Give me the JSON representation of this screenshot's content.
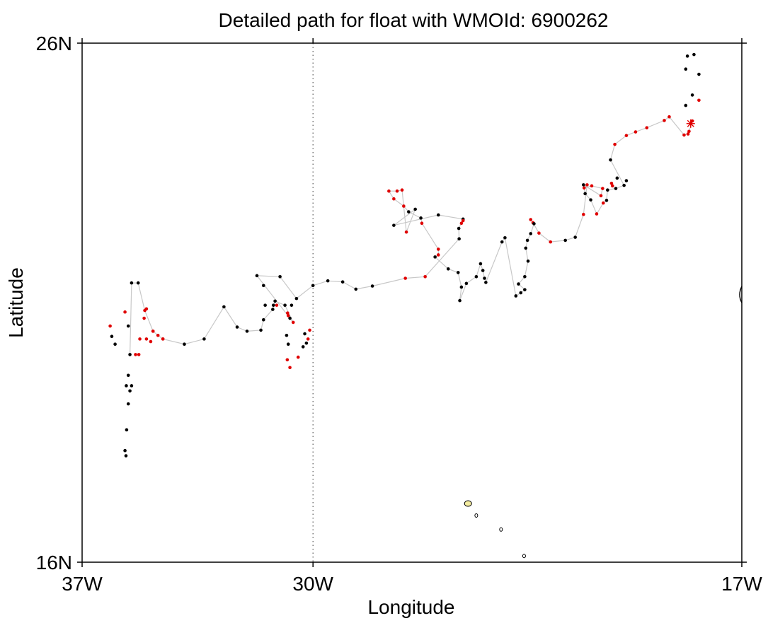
{
  "chart_data": {
    "type": "scatter",
    "title": "Detailed path for float with WMOId: 6900262",
    "xlabel": "Longitude",
    "ylabel": "Latitude",
    "xlim": [
      -37,
      -17
    ],
    "ylim": [
      16,
      26
    ],
    "x_ticks": [
      {
        "value": -37,
        "label": "37W"
      },
      {
        "value": -30,
        "label": "30W"
      },
      {
        "value": -17,
        "label": "17W"
      }
    ],
    "y_ticks": [
      {
        "value": 16,
        "label": "16N"
      },
      {
        "value": 26,
        "label": "26N"
      }
    ],
    "dotted_meridian": -30,
    "colors": {
      "path": "#c8c8c8",
      "black_point": "#000000",
      "red_point": "#e00000",
      "land": "#f5eda0"
    },
    "start_marker": {
      "lon": -18.55,
      "lat": 24.45
    },
    "path": [
      {
        "lon": -18.55,
        "lat": 24.45,
        "c": "red"
      },
      {
        "lon": -18.5,
        "lat": 24.5,
        "c": "red"
      },
      {
        "lon": -18.6,
        "lat": 24.3,
        "c": "red"
      },
      {
        "lon": -18.63,
        "lat": 24.25,
        "c": "red"
      },
      {
        "lon": -18.75,
        "lat": 24.23,
        "c": "red"
      },
      {
        "lon": -19.2,
        "lat": 24.58,
        "c": "red"
      },
      {
        "lon": -19.35,
        "lat": 24.51,
        "c": "red"
      },
      {
        "lon": -19.88,
        "lat": 24.37,
        "c": "red"
      },
      {
        "lon": -20.22,
        "lat": 24.29,
        "c": "red"
      },
      {
        "lon": -20.5,
        "lat": 24.22,
        "c": "red"
      },
      {
        "lon": -20.85,
        "lat": 24.05,
        "c": "red"
      },
      {
        "lon": -20.98,
        "lat": 23.75,
        "c": "black"
      },
      {
        "lon": -20.57,
        "lat": 23.26,
        "c": "black"
      },
      {
        "lon": -20.82,
        "lat": 23.2,
        "c": "black"
      },
      {
        "lon": -21.07,
        "lat": 23.17,
        "c": "black"
      },
      {
        "lon": -21.1,
        "lat": 22.97,
        "c": "black"
      },
      {
        "lon": -21.2,
        "lat": 22.92,
        "c": "red"
      },
      {
        "lon": -21.4,
        "lat": 22.71,
        "c": "red"
      },
      {
        "lon": -21.58,
        "lat": 22.98,
        "c": "black"
      },
      {
        "lon": -21.75,
        "lat": 23.1,
        "c": "black"
      },
      {
        "lon": -21.8,
        "lat": 23.27,
        "c": "black"
      },
      {
        "lon": -21.27,
        "lat": 23.06,
        "c": "red"
      },
      {
        "lon": -21.22,
        "lat": 23.2,
        "c": "red"
      },
      {
        "lon": -21.55,
        "lat": 23.25,
        "c": "red"
      },
      {
        "lon": -21.78,
        "lat": 23.21,
        "c": "red"
      },
      {
        "lon": -21.69,
        "lat": 23.27,
        "c": "red"
      },
      {
        "lon": -21.8,
        "lat": 22.7,
        "c": "red"
      },
      {
        "lon": -22.05,
        "lat": 22.26,
        "c": "black"
      },
      {
        "lon": -22.35,
        "lat": 22.2,
        "c": "black"
      },
      {
        "lon": -22.8,
        "lat": 22.17,
        "c": "red"
      },
      {
        "lon": -23.15,
        "lat": 22.34,
        "c": "red"
      },
      {
        "lon": -23.33,
        "lat": 22.54,
        "c": "red"
      },
      {
        "lon": -23.4,
        "lat": 22.6,
        "c": "red"
      },
      {
        "lon": -23.3,
        "lat": 22.52,
        "c": "black"
      },
      {
        "lon": -23.4,
        "lat": 22.33,
        "c": "black"
      },
      {
        "lon": -23.5,
        "lat": 22.2,
        "c": "black"
      },
      {
        "lon": -23.55,
        "lat": 22.05,
        "c": "black"
      },
      {
        "lon": -23.48,
        "lat": 21.8,
        "c": "black"
      },
      {
        "lon": -23.58,
        "lat": 21.5,
        "c": "black"
      },
      {
        "lon": -23.77,
        "lat": 21.36,
        "c": "black"
      },
      {
        "lon": -23.58,
        "lat": 21.25,
        "c": "black"
      },
      {
        "lon": -23.7,
        "lat": 21.19,
        "c": "black"
      },
      {
        "lon": -23.85,
        "lat": 21.13,
        "c": "black"
      },
      {
        "lon": -24.18,
        "lat": 22.25,
        "c": "black"
      },
      {
        "lon": -24.27,
        "lat": 22.17,
        "c": "black"
      },
      {
        "lon": -24.76,
        "lat": 21.39,
        "c": "black"
      },
      {
        "lon": -24.8,
        "lat": 21.47,
        "c": "black"
      },
      {
        "lon": -24.85,
        "lat": 21.62,
        "c": "black"
      },
      {
        "lon": -24.92,
        "lat": 21.75,
        "c": "black"
      },
      {
        "lon": -25.05,
        "lat": 21.5,
        "c": "black"
      },
      {
        "lon": -25.35,
        "lat": 21.37,
        "c": "black"
      },
      {
        "lon": -25.55,
        "lat": 21.04,
        "c": "black"
      },
      {
        "lon": -25.5,
        "lat": 21.3,
        "c": "black"
      },
      {
        "lon": -25.6,
        "lat": 21.58,
        "c": "black"
      },
      {
        "lon": -25.9,
        "lat": 21.65,
        "c": "black"
      },
      {
        "lon": -26.3,
        "lat": 21.88,
        "c": "black"
      },
      {
        "lon": -26.2,
        "lat": 21.92,
        "c": "red"
      },
      {
        "lon": -26.2,
        "lat": 22.03,
        "c": "red"
      },
      {
        "lon": -26.7,
        "lat": 22.53,
        "c": "red"
      },
      {
        "lon": -26.73,
        "lat": 22.63,
        "c": "black"
      },
      {
        "lon": -27.1,
        "lat": 22.75,
        "c": "black"
      },
      {
        "lon": -27.25,
        "lat": 22.86,
        "c": "red"
      },
      {
        "lon": -27.55,
        "lat": 23.0,
        "c": "red"
      },
      {
        "lon": -27.7,
        "lat": 23.15,
        "c": "red"
      },
      {
        "lon": -27.45,
        "lat": 23.15,
        "c": "red"
      },
      {
        "lon": -27.3,
        "lat": 23.17,
        "c": "red"
      },
      {
        "lon": -27.17,
        "lat": 22.36,
        "c": "red"
      },
      {
        "lon": -26.9,
        "lat": 22.8,
        "c": "black"
      },
      {
        "lon": -27.55,
        "lat": 22.49,
        "c": "black"
      },
      {
        "lon": -26.2,
        "lat": 22.69,
        "c": "black"
      },
      {
        "lon": -25.45,
        "lat": 22.61,
        "c": "black"
      },
      {
        "lon": -25.58,
        "lat": 22.43,
        "c": "black"
      },
      {
        "lon": -25.57,
        "lat": 22.23,
        "c": "black"
      },
      {
        "lon": -26.6,
        "lat": 21.5,
        "c": "red"
      },
      {
        "lon": -27.2,
        "lat": 21.47,
        "c": "red"
      },
      {
        "lon": -28.2,
        "lat": 21.32,
        "c": "black"
      },
      {
        "lon": -28.7,
        "lat": 21.26,
        "c": "black"
      },
      {
        "lon": -29.1,
        "lat": 21.4,
        "c": "black"
      },
      {
        "lon": -29.55,
        "lat": 21.42,
        "c": "black"
      },
      {
        "lon": -30.0,
        "lat": 21.33,
        "c": "black"
      },
      {
        "lon": -30.5,
        "lat": 21.08,
        "c": "black"
      },
      {
        "lon": -31.0,
        "lat": 21.5,
        "c": "black"
      },
      {
        "lon": -31.7,
        "lat": 21.52,
        "c": "black"
      },
      {
        "lon": -30.7,
        "lat": 20.7,
        "c": "black"
      },
      {
        "lon": -30.6,
        "lat": 20.62,
        "c": "red"
      },
      {
        "lon": -30.85,
        "lat": 20.95,
        "c": "black"
      },
      {
        "lon": -31.15,
        "lat": 21.03,
        "c": "black"
      },
      {
        "lon": -31.22,
        "lat": 20.87,
        "c": "black"
      },
      {
        "lon": -31.5,
        "lat": 20.67,
        "c": "black"
      },
      {
        "lon": -31.58,
        "lat": 20.47,
        "c": "black"
      },
      {
        "lon": -32.0,
        "lat": 20.45,
        "c": "black"
      },
      {
        "lon": -32.3,
        "lat": 20.53,
        "c": "black"
      },
      {
        "lon": -32.7,
        "lat": 20.92,
        "c": "black"
      },
      {
        "lon": -33.3,
        "lat": 20.3,
        "c": "black"
      },
      {
        "lon": -33.9,
        "lat": 20.2,
        "c": "black"
      },
      {
        "lon": -34.55,
        "lat": 20.3,
        "c": "red"
      },
      {
        "lon": -34.7,
        "lat": 20.37,
        "c": "red"
      },
      {
        "lon": -34.85,
        "lat": 20.45,
        "c": "red"
      },
      {
        "lon": -35.1,
        "lat": 20.85,
        "c": "red"
      },
      {
        "lon": -35.3,
        "lat": 21.38,
        "c": "black"
      },
      {
        "lon": -35.5,
        "lat": 21.38,
        "c": "black"
      },
      {
        "lon": -35.55,
        "lat": 20.0,
        "c": "black"
      }
    ],
    "extra_points": [
      {
        "lon": -18.7,
        "lat": 24.8,
        "c": "black"
      },
      {
        "lon": -18.5,
        "lat": 25.0,
        "c": "black"
      },
      {
        "lon": -18.7,
        "lat": 25.5,
        "c": "black"
      },
      {
        "lon": -18.65,
        "lat": 25.75,
        "c": "black"
      },
      {
        "lon": -18.45,
        "lat": 25.78,
        "c": "black"
      },
      {
        "lon": -18.3,
        "lat": 25.4,
        "c": "black"
      },
      {
        "lon": -18.3,
        "lat": 24.9,
        "c": "red"
      },
      {
        "lon": -35.05,
        "lat": 20.88,
        "c": "red"
      },
      {
        "lon": -35.6,
        "lat": 20.55,
        "c": "black"
      },
      {
        "lon": -35.6,
        "lat": 19.6,
        "c": "black"
      },
      {
        "lon": -35.66,
        "lat": 19.4,
        "c": "black"
      },
      {
        "lon": -35.5,
        "lat": 19.4,
        "c": "black"
      },
      {
        "lon": -35.55,
        "lat": 19.3,
        "c": "black"
      },
      {
        "lon": -35.6,
        "lat": 19.05,
        "c": "black"
      },
      {
        "lon": -35.65,
        "lat": 18.55,
        "c": "black"
      },
      {
        "lon": -35.7,
        "lat": 18.15,
        "c": "black"
      },
      {
        "lon": -35.67,
        "lat": 18.05,
        "c": "black"
      },
      {
        "lon": -36.1,
        "lat": 20.35,
        "c": "black"
      },
      {
        "lon": -36.0,
        "lat": 20.2,
        "c": "black"
      },
      {
        "lon": -36.15,
        "lat": 20.55,
        "c": "red"
      },
      {
        "lon": -35.7,
        "lat": 20.82,
        "c": "red"
      },
      {
        "lon": -35.38,
        "lat": 20.0,
        "c": "red"
      },
      {
        "lon": -35.28,
        "lat": 20.0,
        "c": "red"
      },
      {
        "lon": -35.25,
        "lat": 20.3,
        "c": "red"
      },
      {
        "lon": -35.05,
        "lat": 20.3,
        "c": "red"
      },
      {
        "lon": -34.85,
        "lat": 20.45,
        "c": "red"
      },
      {
        "lon": -34.92,
        "lat": 20.25,
        "c": "red"
      },
      {
        "lon": -34.55,
        "lat": 20.3,
        "c": "red"
      },
      {
        "lon": -35.12,
        "lat": 20.7,
        "c": "red"
      },
      {
        "lon": -31.45,
        "lat": 20.95,
        "c": "black"
      },
      {
        "lon": -31.5,
        "lat": 21.33,
        "c": "black"
      },
      {
        "lon": -31.1,
        "lat": 20.95,
        "c": "red"
      },
      {
        "lon": -30.75,
        "lat": 20.75,
        "c": "red"
      },
      {
        "lon": -30.65,
        "lat": 20.95,
        "c": "black"
      },
      {
        "lon": -31.2,
        "lat": 20.95,
        "c": "black"
      },
      {
        "lon": -30.77,
        "lat": 20.8,
        "c": "red"
      },
      {
        "lon": -30.75,
        "lat": 20.2,
        "c": "black"
      },
      {
        "lon": -30.8,
        "lat": 20.37,
        "c": "black"
      },
      {
        "lon": -30.78,
        "lat": 19.9,
        "c": "red"
      },
      {
        "lon": -30.7,
        "lat": 19.75,
        "c": "red"
      },
      {
        "lon": -30.45,
        "lat": 19.95,
        "c": "red"
      },
      {
        "lon": -30.3,
        "lat": 20.15,
        "c": "black"
      },
      {
        "lon": -30.2,
        "lat": 20.22,
        "c": "black"
      },
      {
        "lon": -30.25,
        "lat": 20.4,
        "c": "black"
      },
      {
        "lon": -30.15,
        "lat": 20.3,
        "c": "red"
      },
      {
        "lon": -30.1,
        "lat": 20.47,
        "c": "red"
      },
      {
        "lon": -25.5,
        "lat": 22.53,
        "c": "red"
      },
      {
        "lon": -25.45,
        "lat": 22.58,
        "c": "red"
      },
      {
        "lon": -20.5,
        "lat": 23.35,
        "c": "black"
      },
      {
        "lon": -20.78,
        "lat": 23.4,
        "c": "black"
      },
      {
        "lon": -20.92,
        "lat": 23.25,
        "c": "red"
      },
      {
        "lon": -20.95,
        "lat": 23.3,
        "c": "red"
      }
    ],
    "islands": [
      {
        "lon": -25.3,
        "lat": 17.13,
        "size": "large"
      },
      {
        "lon": -25.05,
        "lat": 16.9,
        "size": "small"
      },
      {
        "lon": -24.3,
        "lat": 16.63,
        "size": "small"
      },
      {
        "lon": -23.6,
        "lat": 16.12,
        "size": "small"
      }
    ]
  }
}
